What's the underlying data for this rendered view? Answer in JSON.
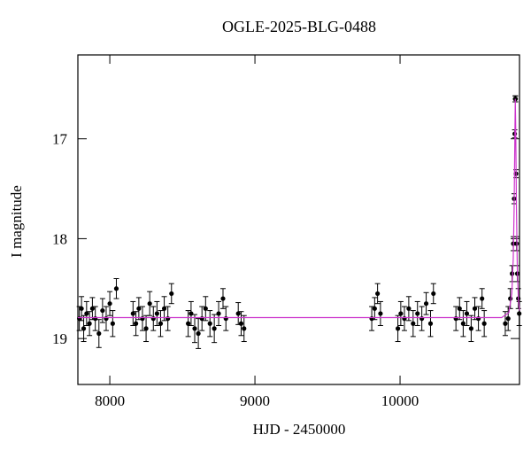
{
  "chart_data": {
    "type": "scatter",
    "title": "OGLE-2025-BLG-0488",
    "x_label": "HJD - 2450000",
    "y_label": "I magnitude",
    "xlim": [
      7780,
      10823
    ],
    "ylim": [
      19.46,
      16.16
    ],
    "xticks": [
      8000,
      9000,
      10000
    ],
    "yticks": [
      17,
      18,
      19
    ],
    "y_inverted": true,
    "color": "#000000",
    "x": [
      7790,
      7805,
      7820,
      7840,
      7860,
      7880,
      7900,
      7925,
      7950,
      7975,
      8000,
      8020,
      8045,
      8160,
      8180,
      8200,
      8225,
      8250,
      8275,
      8300,
      8325,
      8350,
      8375,
      8400,
      8425,
      8540,
      8560,
      8585,
      8610,
      8635,
      8660,
      8690,
      8720,
      8750,
      8780,
      8800,
      8885,
      8905,
      8925,
      9805,
      9825,
      9845,
      9865,
      9985,
      10005,
      10030,
      10060,
      10090,
      10120,
      10150,
      10180,
      10210,
      10230,
      10385,
      10410,
      10435,
      10460,
      10490,
      10515,
      10540,
      10565,
      10580,
      10725,
      10745,
      10760,
      10772,
      10780,
      10786,
      10790,
      10793,
      10796,
      10799,
      10803,
      10808,
      10815,
      10821
    ],
    "values": [
      18.8,
      18.7,
      18.9,
      18.75,
      18.85,
      18.7,
      18.8,
      18.95,
      18.72,
      18.8,
      18.65,
      18.85,
      18.5,
      18.75,
      18.85,
      18.7,
      18.8,
      18.9,
      18.65,
      18.8,
      18.75,
      18.85,
      18.7,
      18.8,
      18.55,
      18.85,
      18.75,
      18.9,
      18.95,
      18.8,
      18.7,
      18.85,
      18.9,
      18.75,
      18.6,
      18.8,
      18.75,
      18.85,
      18.9,
      18.8,
      18.7,
      18.55,
      18.75,
      18.9,
      18.75,
      18.8,
      18.7,
      18.85,
      18.75,
      18.8,
      18.65,
      18.85,
      18.55,
      18.8,
      18.7,
      18.85,
      18.75,
      18.9,
      18.7,
      18.8,
      18.6,
      18.85,
      18.85,
      18.8,
      18.6,
      18.35,
      18.05,
      17.6,
      16.95,
      16.6,
      16.6,
      17.35,
      18.05,
      18.35,
      18.6,
      18.75
    ],
    "errors": [
      0.12,
      0.12,
      0.13,
      0.12,
      0.12,
      0.11,
      0.12,
      0.14,
      0.12,
      0.12,
      0.12,
      0.13,
      0.1,
      0.12,
      0.12,
      0.11,
      0.12,
      0.13,
      0.12,
      0.12,
      0.12,
      0.13,
      0.12,
      0.12,
      0.1,
      0.13,
      0.12,
      0.14,
      0.15,
      0.12,
      0.12,
      0.13,
      0.14,
      0.12,
      0.1,
      0.12,
      0.11,
      0.12,
      0.13,
      0.12,
      0.11,
      0.1,
      0.12,
      0.13,
      0.12,
      0.12,
      0.12,
      0.13,
      0.12,
      0.12,
      0.11,
      0.13,
      0.1,
      0.12,
      0.11,
      0.13,
      0.12,
      0.13,
      0.11,
      0.12,
      0.1,
      0.13,
      0.12,
      0.12,
      0.1,
      0.08,
      0.07,
      0.05,
      0.04,
      0.03,
      0.03,
      0.04,
      0.07,
      0.08,
      0.1,
      0.12
    ],
    "model": {
      "color": "#cc33cc",
      "x": [
        7780,
        10700,
        10750,
        10770,
        10780,
        10786,
        10791,
        10794,
        10797,
        10802,
        10808,
        10815,
        10823
      ],
      "values": [
        18.79,
        18.79,
        18.74,
        18.55,
        18.2,
        17.7,
        17.0,
        16.6,
        16.9,
        17.7,
        18.3,
        18.6,
        18.72
      ]
    }
  }
}
